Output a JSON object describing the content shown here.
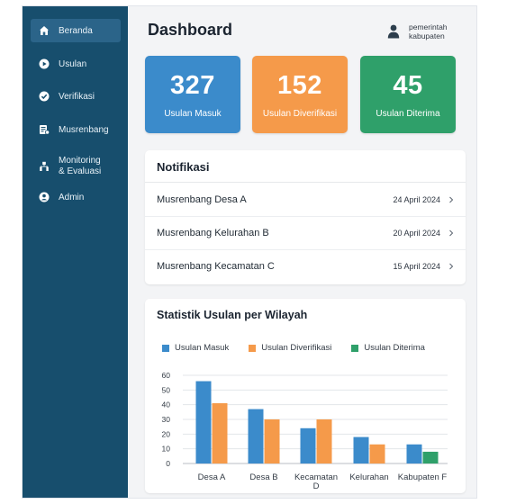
{
  "sidebar": {
    "items": [
      {
        "label": "Beranda",
        "icon": "home-icon",
        "active": true
      },
      {
        "label": "Usulan",
        "icon": "play-circle-icon",
        "active": false
      },
      {
        "label": "Verifikasi",
        "icon": "check-circle-icon",
        "active": false
      },
      {
        "label": "Musrenbang",
        "icon": "document-list-icon",
        "active": false
      },
      {
        "label_line1": "Monitoring",
        "label_line2": "& Evaluasi",
        "icon": "org-chart-icon",
        "active": false
      },
      {
        "label": "Admin",
        "icon": "user-circle-icon",
        "active": false
      }
    ]
  },
  "header": {
    "title": "Dashboard",
    "user_line1": "pemerintah",
    "user_line2": "kabupaten"
  },
  "stats": [
    {
      "value": "327",
      "label": "Usulan Masuk",
      "color": "#3b8bcb"
    },
    {
      "value": "152",
      "label": "Usulan Diverifikasi",
      "color": "#f59a4a"
    },
    {
      "value": "45",
      "label": "Usulan Diterima",
      "color": "#2fa06a"
    }
  ],
  "notifications": {
    "title": "Notifikasi",
    "items": [
      {
        "name": "Musrenbang Desa A",
        "date": "24 April 2024"
      },
      {
        "name": "Musrenbang Kelurahan B",
        "date": "20 April 2024"
      },
      {
        "name": "Musrenbang Kecamatan C",
        "date": "15 April 2024"
      }
    ]
  },
  "chart_data": {
    "type": "bar",
    "title": "Statistik Usulan per Wilayah",
    "categories": [
      "Desa A",
      "Desa B",
      "Kecamatan D",
      "Kelurahan",
      "Kabupaten F"
    ],
    "category_lines": [
      [
        "Desa A"
      ],
      [
        "Desa B"
      ],
      [
        "Kecamatan",
        "D"
      ],
      [
        "Kelurahan"
      ],
      [
        "Kabupaten F"
      ]
    ],
    "series": [
      {
        "name": "Usulan Masuk",
        "color": "#3b8bcb",
        "values": [
          56,
          37,
          24,
          18,
          13
        ]
      },
      {
        "name": "Usulan Diverifikasi",
        "color": "#f59a4a",
        "values": [
          41,
          30,
          30,
          13,
          0
        ]
      },
      {
        "name": "Usulan Diterima",
        "color": "#2fa06a",
        "values": [
          0,
          0,
          0,
          0,
          8
        ]
      }
    ],
    "y_ticks": [
      0,
      10,
      20,
      30,
      40,
      50,
      60
    ],
    "ylim": [
      0,
      60
    ],
    "grid": true,
    "legend_position": "top-left"
  }
}
